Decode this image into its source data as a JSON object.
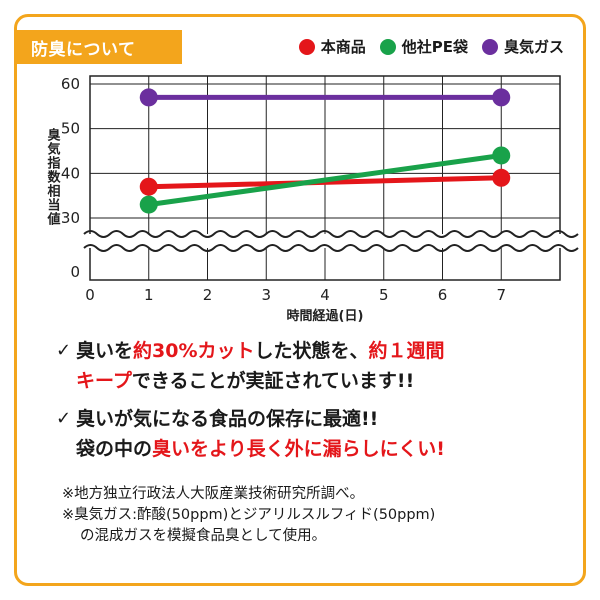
{
  "header": {
    "title": "防臭について"
  },
  "colors": {
    "accent": "#f3a51c",
    "red": "#e4161a",
    "green": "#19a24a",
    "purple": "#6b2f9e"
  },
  "chart_data": {
    "type": "line",
    "title": "",
    "xlabel": "時間経過(日)",
    "ylabel": "臭気指数相当値",
    "xlim": [
      0,
      8
    ],
    "x_ticks": [
      "0",
      "1",
      "2",
      "3",
      "4",
      "5",
      "6",
      "7"
    ],
    "y_ticks_upper": [
      "30",
      "40",
      "50",
      "60"
    ],
    "y_tick_zero": "0",
    "axis_break": "between 0 and 30",
    "grid": true,
    "legend_position": "top-right",
    "series": [
      {
        "name": "本商品",
        "color": "#e4161a",
        "x": [
          1,
          7
        ],
        "y": [
          37,
          39
        ]
      },
      {
        "name": "他社PE袋",
        "color": "#19a24a",
        "x": [
          1,
          7
        ],
        "y": [
          33,
          44
        ]
      },
      {
        "name": "臭気ガス",
        "color": "#6b2f9e",
        "x": [
          1,
          7
        ],
        "y": [
          57,
          57
        ]
      }
    ]
  },
  "claims": [
    {
      "parts": [
        {
          "text": "臭いを",
          "red": false
        },
        {
          "text": "約30%カット",
          "red": true
        },
        {
          "text": "した状態を、",
          "red": false
        },
        {
          "text": "約１週間",
          "red": true
        },
        {
          "text": "キープ",
          "red": true
        },
        {
          "text": "できることが実証されています!!",
          "red": false
        }
      ]
    },
    {
      "parts": [
        {
          "text": "臭いが気になる食品の保存に最適!!",
          "red": false
        },
        {
          "text": "袋の中の",
          "red": false
        },
        {
          "text": "臭いをより長く外に漏らしにくい!",
          "red": true
        }
      ]
    }
  ],
  "footnotes": [
    "※地方独立行政法人大阪産業技術研究所調べ。",
    "※臭気ガス:酢酸(50ppm)とジアリルスルフィド(50ppm)",
    "の混成ガスを模擬食品臭として使用。"
  ],
  "check_mark": "✓"
}
